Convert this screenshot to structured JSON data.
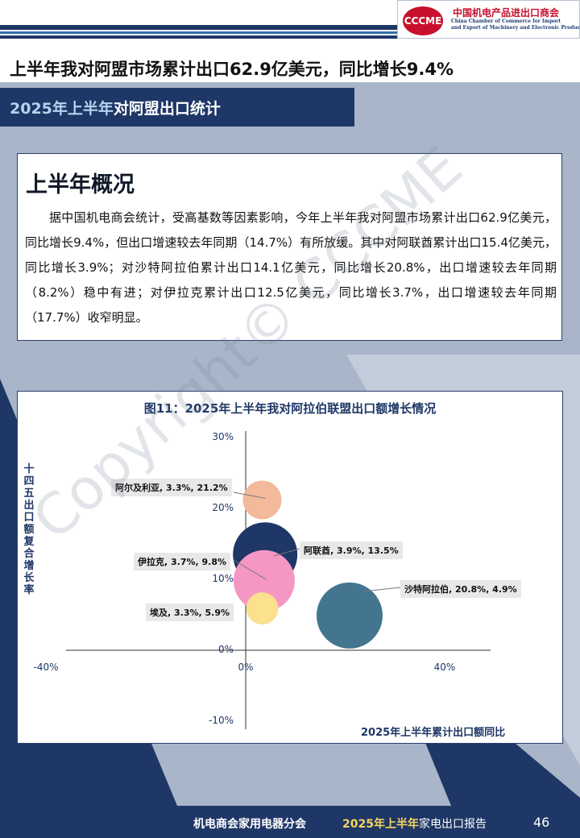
{
  "header": {
    "logo": {
      "mark": "CCCME",
      "name_cn": "中国机电产品进出口商会",
      "name_en_1": "China Chamber of Commerce for Import",
      "name_en_2": "and Export of Machinery and Electronic Products"
    },
    "headline": "上半年我对阿盟市场累计出口62.9亿美元，同比增长9.4%",
    "banner": {
      "highlight": "2025年上半年",
      "rest": "对阿盟出口统计"
    }
  },
  "overview": {
    "title": "上半年概况",
    "body": "据中国机电商会统计，受高基数等因素影响，今年上半年我对阿盟市场累计出口62.9亿美元，同比增长9.4%，但出口增速较去年同期（14.7%）有所放缓。其中对阿联酋累计出口15.4亿美元，同比增长3.9%；对沙特阿拉伯累计出口14.1亿美元，同比增长20.8%，出口增速较去年同期（8.2%）稳中有进；对伊拉克累计出口12.5亿美元，同比增长3.7%，出口增速较去年同期（17.7%）收窄明显。"
  },
  "chart_data": {
    "type": "bubble",
    "title": "图11：2025年上半年我对阿拉伯联盟出口额增长情况",
    "xlabel": "2025年上半年累计出口额同比",
    "ylabel": "十四五出口额复合增长率",
    "xlim": [
      -40,
      50
    ],
    "ylim": [
      -10,
      30
    ],
    "x_ticks": [
      "-40%",
      "0%",
      "40%"
    ],
    "y_ticks": [
      "30%",
      "20%",
      "10%",
      "0%",
      "-10%"
    ],
    "grid": false,
    "points": [
      {
        "label": "阿尔及利亚, 3.3%, 21.2%",
        "x": 3.3,
        "y": 21.2,
        "size": 24,
        "color": "#f2b99b"
      },
      {
        "label": "阿联酋, 3.9%, 13.5%",
        "x": 3.9,
        "y": 13.5,
        "size": 40,
        "color": "#1e3766"
      },
      {
        "label": "伊拉克, 3.7%, 9.8%",
        "x": 3.7,
        "y": 9.8,
        "size": 38,
        "color": "#f597c4"
      },
      {
        "label": "埃及, 3.3%, 5.9%",
        "x": 3.3,
        "y": 5.9,
        "size": 20,
        "color": "#fbe08e"
      },
      {
        "label": "沙特阿拉伯, 20.8%, 4.9%",
        "x": 20.8,
        "y": 4.9,
        "size": 41,
        "color": "#44758f"
      }
    ]
  },
  "watermark": "Copyright© CCCME",
  "footer": {
    "org": "机电商会家用电器分会",
    "report_highlight": "2025年上半年",
    "report_rest": "家电出口报告",
    "page": "46"
  }
}
